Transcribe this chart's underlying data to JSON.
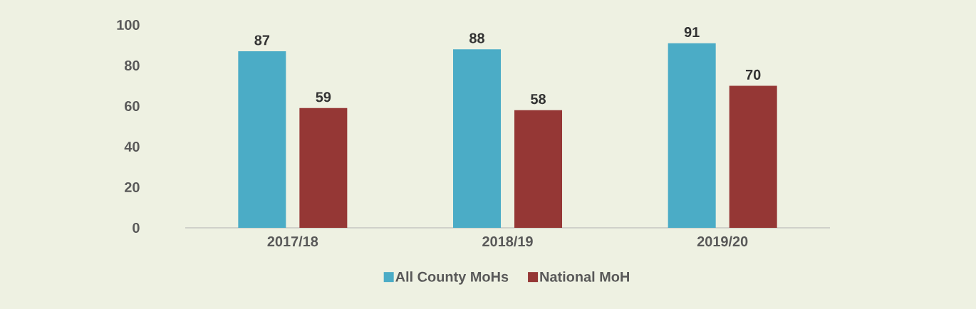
{
  "chart_data": {
    "type": "bar",
    "categories": [
      "2017/18",
      "2018/19",
      "2019/20"
    ],
    "series": [
      {
        "name": "All County MoHs",
        "color": "#4bacc6",
        "values": [
          87,
          88,
          91
        ]
      },
      {
        "name": "National MoH",
        "color": "#953735",
        "values": [
          59,
          58,
          70
        ]
      }
    ],
    "ylim": [
      0,
      100
    ],
    "yticks": [
      0,
      20,
      40,
      60,
      80,
      100
    ],
    "data_labels": true,
    "legend": "bottom"
  }
}
